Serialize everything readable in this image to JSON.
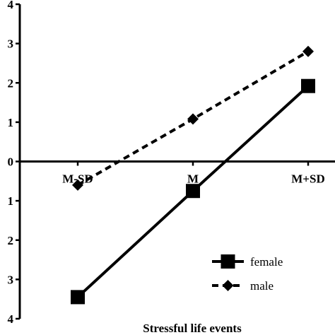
{
  "chart_data": {
    "type": "line",
    "xlabel": "Stressful life events",
    "ylabel": "",
    "categories": [
      "M-SD",
      "M",
      "M+SD"
    ],
    "yticks": [
      "4",
      "3",
      "2",
      "1",
      "0",
      "1",
      "2",
      "3",
      "4"
    ],
    "ytick_values": [
      4,
      3,
      2,
      1,
      0,
      -1,
      -2,
      -3,
      -4
    ],
    "ylim": [
      -4,
      4
    ],
    "grid": false,
    "legend_position": "bottom-right",
    "series": [
      {
        "name": "female",
        "values": [
          -3.45,
          -0.75,
          1.92
        ],
        "color": "#000000",
        "line_style": "solid",
        "marker": "square"
      },
      {
        "name": "male",
        "values": [
          -0.6,
          1.08,
          2.8
        ],
        "color": "#000000",
        "line_style": "dashed",
        "marker": "diamond"
      }
    ]
  }
}
